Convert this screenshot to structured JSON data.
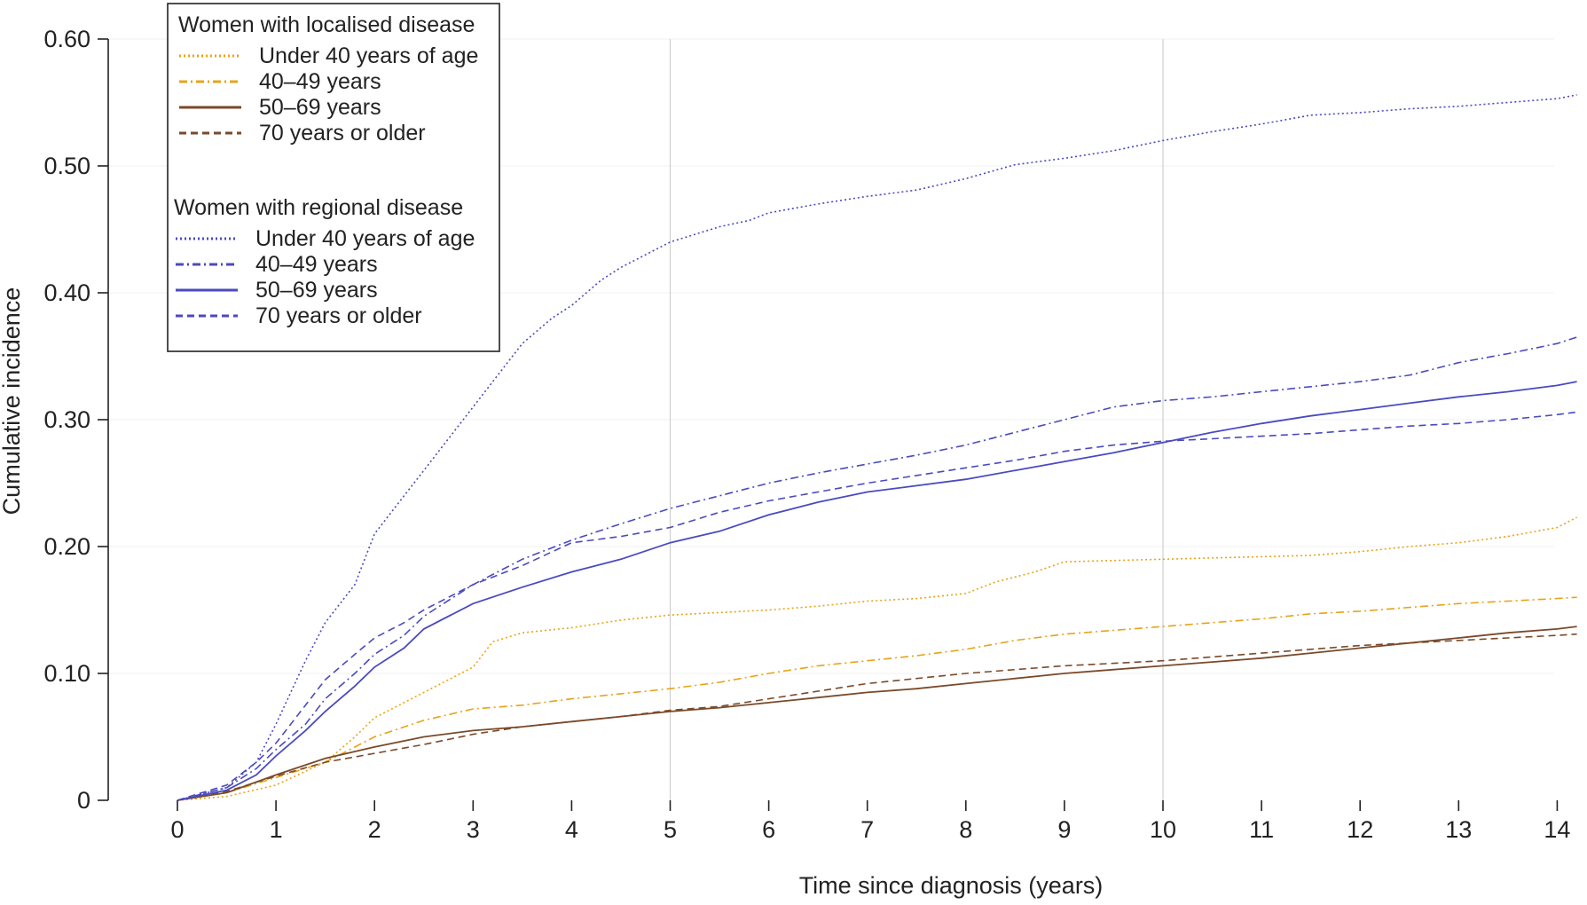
{
  "chart_data": {
    "type": "line",
    "xlabel": "Time since diagnosis (years)",
    "ylabel": "Cumulative incidence",
    "xlim": [
      0,
      14.3
    ],
    "ylim": [
      0,
      0.6
    ],
    "x_ticks": [
      "0",
      "1",
      "2",
      "3",
      "4",
      "5",
      "6",
      "7",
      "8",
      "9",
      "10",
      "11",
      "12",
      "13",
      "14"
    ],
    "y_ticks": [
      {
        "value": 0,
        "label": "0"
      },
      {
        "value": 0.1,
        "label": "0.10"
      },
      {
        "value": 0.2,
        "label": "0.20"
      },
      {
        "value": 0.3,
        "label": "0.30"
      },
      {
        "value": 0.4,
        "label": "0.40"
      },
      {
        "value": 0.5,
        "label": "0.50"
      },
      {
        "value": 0.6,
        "label": "0.60"
      }
    ],
    "vertical_gridlines_at": [
      5,
      10
    ],
    "legend": {
      "placement": "top-left",
      "groups": [
        {
          "title": "Women with localised disease",
          "entries": [
            "Under 40 years of age",
            "40–49 years",
            "50–69 years",
            "70 years or older"
          ]
        },
        {
          "title": "Women with regional disease",
          "entries": [
            "Under 40 years of age",
            "40–49 years",
            "50–69 years",
            "70 years or older"
          ]
        }
      ]
    },
    "colors": {
      "localised_light": "#e8a317",
      "localised_dark": "#4a2a16",
      "localised_mid": "#7a4a2a",
      "regional": "#4a4ac0"
    },
    "series": [
      {
        "name": "Under 40 years of age",
        "group": "Women with localised disease",
        "style": "dotted",
        "color": "#e8a317",
        "x": [
          0,
          0.5,
          1,
          1.5,
          1.8,
          2,
          2.5,
          3,
          3.2,
          3.5,
          4,
          4.5,
          5,
          5.5,
          6,
          6.5,
          7,
          7.5,
          8,
          8.3,
          8.7,
          9,
          9.5,
          10,
          11,
          11.5,
          12,
          12.5,
          13,
          13.5,
          14,
          14.2
        ],
        "y": [
          0,
          0.003,
          0.012,
          0.03,
          0.05,
          0.065,
          0.085,
          0.105,
          0.125,
          0.132,
          0.136,
          0.142,
          0.146,
          0.148,
          0.15,
          0.153,
          0.157,
          0.159,
          0.163,
          0.172,
          0.18,
          0.188,
          0.189,
          0.19,
          0.192,
          0.193,
          0.196,
          0.2,
          0.203,
          0.208,
          0.215,
          0.223
        ]
      },
      {
        "name": "40–49 years",
        "group": "Women with localised disease",
        "style": "dashdot",
        "color": "#e8a317",
        "x": [
          0,
          0.5,
          1,
          1.5,
          2,
          2.5,
          3,
          3.5,
          4,
          4.5,
          5,
          5.5,
          6,
          6.5,
          7,
          7.5,
          8,
          8.5,
          9,
          9.5,
          10,
          10.5,
          11,
          11.5,
          12,
          12.5,
          13,
          13.5,
          14,
          14.2
        ],
        "y": [
          0,
          0.006,
          0.018,
          0.03,
          0.05,
          0.063,
          0.072,
          0.075,
          0.08,
          0.084,
          0.088,
          0.093,
          0.1,
          0.106,
          0.11,
          0.114,
          0.119,
          0.126,
          0.131,
          0.134,
          0.137,
          0.14,
          0.143,
          0.147,
          0.149,
          0.152,
          0.155,
          0.157,
          0.159,
          0.16
        ]
      },
      {
        "name": "50–69 years",
        "group": "Women with localised disease",
        "style": "solid",
        "color": "#7a4a2a",
        "x": [
          0,
          0.5,
          1,
          1.5,
          2,
          2.5,
          3,
          3.5,
          4,
          4.5,
          5,
          5.5,
          6,
          6.5,
          7,
          7.5,
          8,
          8.5,
          9,
          9.5,
          10,
          10.5,
          11,
          11.5,
          12,
          12.5,
          13,
          13.5,
          14,
          14.2
        ],
        "y": [
          0,
          0.006,
          0.02,
          0.033,
          0.042,
          0.05,
          0.055,
          0.058,
          0.062,
          0.066,
          0.07,
          0.073,
          0.077,
          0.081,
          0.085,
          0.088,
          0.092,
          0.096,
          0.1,
          0.103,
          0.106,
          0.109,
          0.112,
          0.116,
          0.12,
          0.124,
          0.128,
          0.132,
          0.135,
          0.137
        ]
      },
      {
        "name": "70 years or older",
        "group": "Women with localised disease",
        "style": "dashed",
        "color": "#7a4a2a",
        "x": [
          0,
          0.5,
          1,
          1.5,
          2,
          2.5,
          3,
          3.5,
          4,
          4.5,
          5,
          5.5,
          6,
          6.5,
          7,
          7.5,
          8,
          8.5,
          9,
          9.5,
          10,
          10.5,
          11,
          11.5,
          12,
          12.5,
          13,
          13.5,
          14,
          14.2
        ],
        "y": [
          0,
          0.007,
          0.019,
          0.03,
          0.037,
          0.044,
          0.052,
          0.058,
          0.062,
          0.066,
          0.071,
          0.074,
          0.08,
          0.086,
          0.092,
          0.096,
          0.1,
          0.103,
          0.106,
          0.108,
          0.11,
          0.113,
          0.116,
          0.119,
          0.122,
          0.124,
          0.126,
          0.128,
          0.13,
          0.131
        ]
      },
      {
        "name": "Under 40 years of age",
        "group": "Women with regional disease",
        "style": "dotted",
        "color": "#4a4ac0",
        "x": [
          0,
          0.5,
          0.8,
          1,
          1.3,
          1.5,
          1.8,
          2,
          2.3,
          2.5,
          2.8,
          3,
          3.3,
          3.5,
          3.8,
          4,
          4.3,
          4.5,
          5,
          5.5,
          5.8,
          6,
          6.5,
          7,
          7.5,
          8,
          8.5,
          9,
          9.5,
          10,
          10.5,
          11,
          11.5,
          12,
          12.5,
          13,
          13.5,
          14,
          14.2
        ],
        "y": [
          0,
          0.01,
          0.03,
          0.06,
          0.11,
          0.14,
          0.17,
          0.21,
          0.24,
          0.26,
          0.29,
          0.31,
          0.34,
          0.36,
          0.38,
          0.39,
          0.41,
          0.42,
          0.44,
          0.452,
          0.457,
          0.463,
          0.47,
          0.476,
          0.481,
          0.49,
          0.501,
          0.506,
          0.512,
          0.52,
          0.527,
          0.533,
          0.54,
          0.542,
          0.545,
          0.547,
          0.55,
          0.553,
          0.556
        ]
      },
      {
        "name": "40–49 years",
        "group": "Women with regional disease",
        "style": "dashdot",
        "color": "#4a4ac0",
        "x": [
          0,
          0.5,
          0.8,
          1,
          1.3,
          1.5,
          1.8,
          2,
          2.3,
          2.5,
          3,
          3.5,
          4,
          4.5,
          5,
          5.5,
          6,
          6.5,
          7,
          7.5,
          8,
          8.5,
          9,
          9.5,
          10,
          10.5,
          11,
          11.5,
          12,
          12.5,
          13,
          13.5,
          14,
          14.2
        ],
        "y": [
          0,
          0.01,
          0.025,
          0.04,
          0.06,
          0.08,
          0.1,
          0.115,
          0.13,
          0.145,
          0.17,
          0.19,
          0.205,
          0.218,
          0.23,
          0.24,
          0.25,
          0.258,
          0.265,
          0.272,
          0.28,
          0.29,
          0.3,
          0.31,
          0.315,
          0.318,
          0.322,
          0.326,
          0.33,
          0.335,
          0.345,
          0.352,
          0.36,
          0.365
        ]
      },
      {
        "name": "50–69 years",
        "group": "Women with regional disease",
        "style": "solid",
        "color": "#4a4ac0",
        "x": [
          0,
          0.5,
          0.8,
          1,
          1.3,
          1.5,
          1.8,
          2,
          2.3,
          2.5,
          3,
          3.5,
          4,
          4.5,
          5,
          5.5,
          6,
          6.5,
          7,
          7.5,
          8,
          8.5,
          9,
          9.5,
          10,
          10.5,
          11,
          11.5,
          12,
          12.5,
          13,
          13.5,
          14,
          14.2
        ],
        "y": [
          0,
          0.008,
          0.02,
          0.035,
          0.055,
          0.07,
          0.09,
          0.105,
          0.12,
          0.135,
          0.155,
          0.168,
          0.18,
          0.19,
          0.203,
          0.212,
          0.225,
          0.235,
          0.243,
          0.248,
          0.253,
          0.26,
          0.267,
          0.274,
          0.282,
          0.29,
          0.297,
          0.303,
          0.308,
          0.313,
          0.318,
          0.322,
          0.327,
          0.33
        ]
      },
      {
        "name": "70 years or older",
        "group": "Women with regional disease",
        "style": "dashed",
        "color": "#4a4ac0",
        "x": [
          0,
          0.5,
          0.8,
          1,
          1.3,
          1.5,
          1.8,
          2,
          2.3,
          2.5,
          3,
          3.5,
          4,
          4.5,
          5,
          5.5,
          6,
          6.5,
          7,
          7.5,
          8,
          8.5,
          9,
          9.5,
          10,
          10.5,
          11,
          11.5,
          12,
          12.5,
          13,
          13.5,
          14,
          14.2
        ],
        "y": [
          0,
          0.012,
          0.03,
          0.045,
          0.075,
          0.095,
          0.115,
          0.128,
          0.14,
          0.15,
          0.17,
          0.185,
          0.203,
          0.208,
          0.215,
          0.227,
          0.236,
          0.243,
          0.25,
          0.256,
          0.262,
          0.268,
          0.275,
          0.28,
          0.283,
          0.285,
          0.287,
          0.289,
          0.292,
          0.295,
          0.297,
          0.3,
          0.304,
          0.306
        ]
      }
    ]
  }
}
